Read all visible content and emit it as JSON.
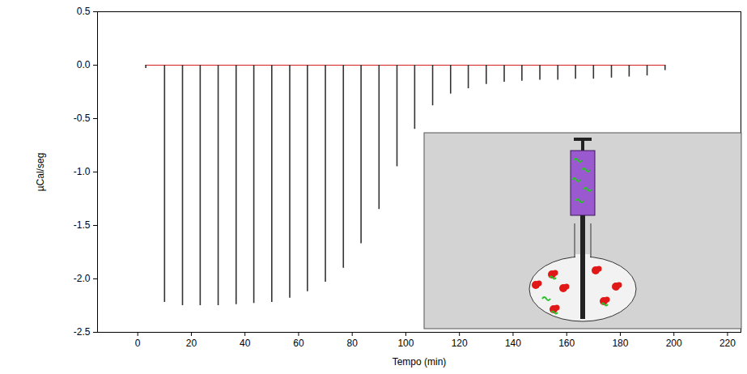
{
  "chart_data": {
    "type": "line",
    "xlabel": "Tempo (min)",
    "ylabel": "µCal/seg",
    "x": [
      3,
      10,
      16.7,
      23.3,
      30,
      36.7,
      43.3,
      50,
      56.7,
      63.3,
      70,
      76.7,
      83.3,
      90,
      96.7,
      103.3,
      110,
      116.7,
      123.3,
      130,
      136.7,
      143.3,
      150,
      156.7,
      163.3,
      170,
      176.7,
      183.3,
      190,
      196.7
    ],
    "values": [
      -0.03,
      -2.22,
      -2.25,
      -2.25,
      -2.25,
      -2.24,
      -2.23,
      -2.22,
      -2.18,
      -2.12,
      -2.03,
      -1.9,
      -1.67,
      -1.35,
      -0.95,
      -0.6,
      -0.38,
      -0.27,
      -0.22,
      -0.18,
      -0.16,
      -0.15,
      -0.14,
      -0.14,
      -0.13,
      -0.13,
      -0.12,
      -0.11,
      -0.1,
      -0.05
    ],
    "color": "#333333",
    "xlim": [
      -15,
      225
    ],
    "xticks": [
      0,
      20,
      40,
      60,
      80,
      100,
      120,
      140,
      160,
      180,
      200,
      220
    ],
    "ylim": [
      -2.5,
      0.5
    ],
    "yticks": [
      {
        "value": 0.5,
        "label": "0.5"
      },
      {
        "value": 0,
        "label": "0.0"
      },
      {
        "value": -0.5,
        "label": "-0.5"
      },
      {
        "value": -1,
        "label": "-1.0"
      },
      {
        "value": -1.5,
        "label": "-1.5"
      },
      {
        "value": -2,
        "label": "-2.0"
      },
      {
        "value": -2.5,
        "label": "-2.5"
      }
    ],
    "grid": false
  }
}
